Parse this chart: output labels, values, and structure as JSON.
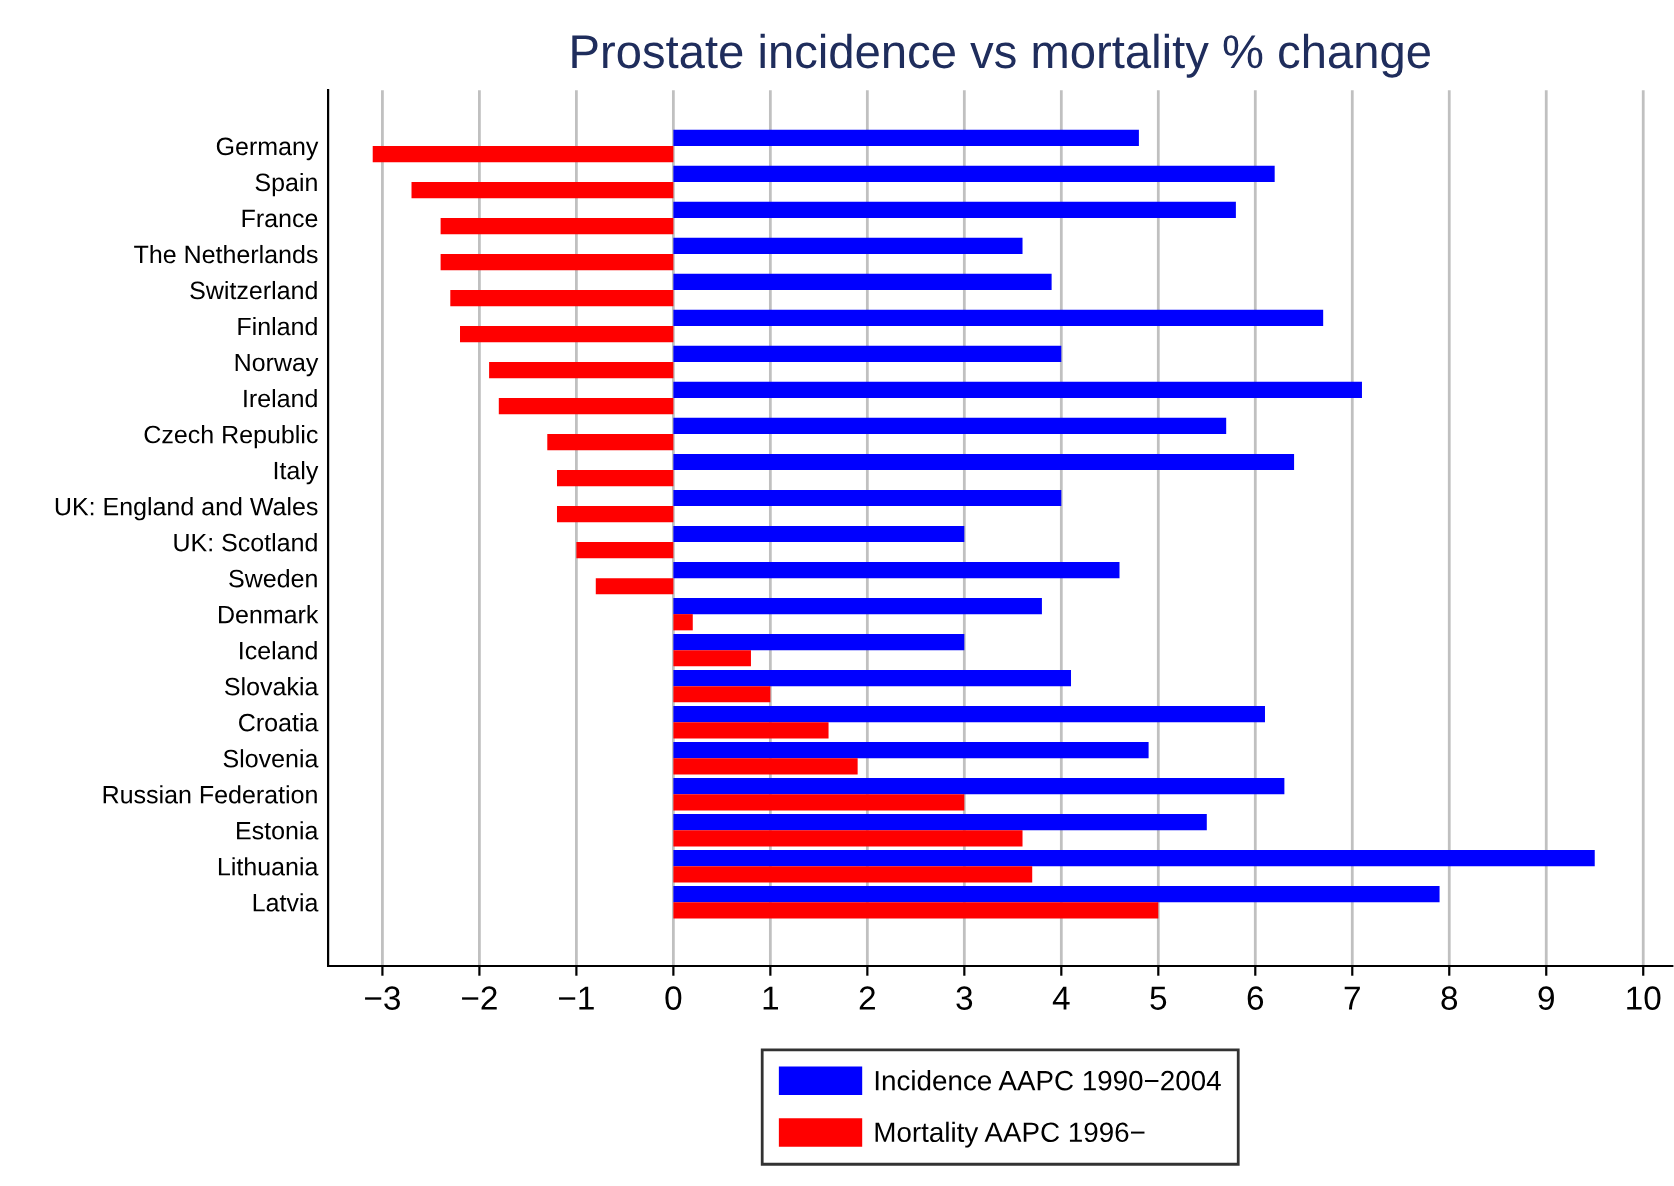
{
  "chart_data": {
    "type": "bar",
    "orientation": "horizontal",
    "title": "Prostate incidence vs mortality % change",
    "categories": [
      "Germany",
      "Spain",
      "France",
      "The Netherlands",
      "Switzerland",
      "Finland",
      "Norway",
      "Ireland",
      "Czech Republic",
      "Italy",
      "UK: England and Wales",
      "UK: Scotland",
      "Sweden",
      "Denmark",
      "Iceland",
      "Slovakia",
      "Croatia",
      "Slovenia",
      "Russian Federation",
      "Estonia",
      "Lithuania",
      "Latvia"
    ],
    "series": [
      {
        "name": "Incidence AAPC 1990−2004",
        "color": "#0000ff",
        "values": [
          4.8,
          6.2,
          5.8,
          3.6,
          3.9,
          6.7,
          4.0,
          7.1,
          5.7,
          6.4,
          4.0,
          3.0,
          4.6,
          3.8,
          3.0,
          4.1,
          6.1,
          4.9,
          6.3,
          5.5,
          9.5,
          7.9
        ]
      },
      {
        "name": "Mortality AAPC 1996−",
        "color": "#ff0000",
        "values": [
          -3.1,
          -2.7,
          -2.4,
          -2.4,
          -2.3,
          -2.2,
          -1.9,
          -1.8,
          -1.3,
          -1.2,
          -1.2,
          -1.0,
          -0.8,
          0.2,
          0.8,
          1.0,
          1.6,
          1.9,
          3.0,
          3.6,
          3.7,
          5.0
        ]
      }
    ],
    "xlim": [
      -3.56,
      10.3
    ],
    "xticks": [
      {
        "value": -3,
        "label": "−3"
      },
      {
        "value": -2,
        "label": "−2"
      },
      {
        "value": -1,
        "label": "−1"
      },
      0,
      1,
      2,
      3,
      4,
      5,
      6,
      7,
      8,
      9,
      10
    ],
    "grid": "x",
    "legend": "bottom"
  }
}
